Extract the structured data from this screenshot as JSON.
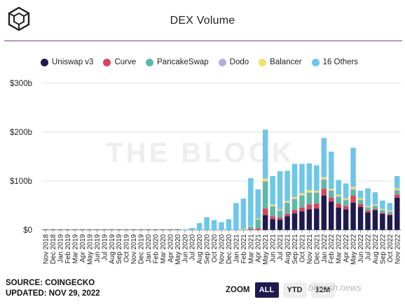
{
  "header": {
    "title": "DEX Volume"
  },
  "legend": [
    {
      "name": "Uniswap v3",
      "color": "#1f1a4e"
    },
    {
      "name": "Curve",
      "color": "#d9435e"
    },
    {
      "name": "PancakeSwap",
      "color": "#5fb8a6"
    },
    {
      "name": "Dodo",
      "color": "#b7add8"
    },
    {
      "name": "Balancer",
      "color": "#f1e06a"
    },
    {
      "name": "16 Others",
      "color": "#6ec6ea"
    }
  ],
  "footer": {
    "source": "SOURCE: COINGECKO",
    "updated": "UPDATED: NOV 29, 2022"
  },
  "zoom": {
    "label": "ZOOM",
    "buttons": [
      "ALL",
      "YTD",
      "12M"
    ],
    "active": "ALL"
  },
  "watermark": {
    "text": "THE BLOCK",
    "site": "bitpush.news"
  },
  "chart_data": {
    "type": "bar",
    "stacked": true,
    "y_unit": "billion USD",
    "ylim": [
      0,
      300
    ],
    "yticks": [
      0,
      100,
      200,
      300
    ],
    "ytick_labels": [
      "$0",
      "$100b",
      "$200b",
      "$300b"
    ],
    "grid": true,
    "legend_position": "top",
    "categories": [
      "Nov 2018",
      "Dec 2018",
      "Jan 2019",
      "Feb 2019",
      "Mar 2019",
      "Apr 2019",
      "May 2019",
      "Jun 2019",
      "Jul 2019",
      "Aug 2019",
      "Sep 2019",
      "Oct 2019",
      "Nov 2019",
      "Dec 2019",
      "Jan 2020",
      "Feb 2020",
      "Mar 2020",
      "Apr 2020",
      "May 2020",
      "Jun 2020",
      "Jul 2020",
      "Aug 2020",
      "Sep 2020",
      "Oct 2020",
      "Nov 2020",
      "Dec 2020",
      "Jan 2021",
      "Feb 2021",
      "Mar 2021",
      "Apr 2021",
      "May 2021",
      "Jun 2021",
      "Jul 2021",
      "Aug 2021",
      "Sep 2021",
      "Oct 2021",
      "Nov 2021",
      "Dec 2021",
      "Jan 2022",
      "Feb 2022",
      "Mar 2022",
      "Apr 2022",
      "May 2022",
      "Jun 2022",
      "Jul 2022",
      "Aug 2022",
      "Sep 2022",
      "Oct 2022",
      "Nov 2022"
    ],
    "series": [
      {
        "name": "Uniswap v3",
        "values": [
          0,
          0,
          0,
          0,
          0,
          0,
          0,
          0,
          0,
          0,
          0,
          0,
          0,
          0,
          0,
          0,
          0,
          0,
          0,
          0,
          0,
          0,
          0,
          0,
          0,
          0,
          0,
          0,
          0,
          0,
          30,
          22,
          21,
          28,
          34,
          38,
          42,
          44,
          70,
          58,
          46,
          42,
          56,
          47,
          36,
          40,
          33,
          30,
          66
        ]
      },
      {
        "name": "Curve",
        "values": [
          0,
          0,
          0,
          0,
          0,
          0,
          0,
          0,
          0,
          0,
          0,
          0,
          0,
          0,
          0,
          0,
          0,
          0,
          0,
          0,
          0,
          0,
          0,
          0,
          0,
          0,
          0,
          0,
          2,
          3,
          14,
          6,
          4,
          5,
          7,
          8,
          10,
          10,
          14,
          8,
          8,
          7,
          14,
          6,
          4,
          3,
          2,
          2,
          6
        ]
      },
      {
        "name": "PancakeSwap",
        "values": [
          0,
          0,
          0,
          0,
          0,
          0,
          0,
          0,
          0,
          0,
          0,
          0,
          0,
          0,
          0,
          0,
          0,
          0,
          0,
          0,
          0,
          0,
          0,
          0,
          0,
          0,
          0,
          1,
          5,
          18,
          55,
          20,
          14,
          22,
          22,
          24,
          24,
          22,
          18,
          14,
          14,
          12,
          12,
          8,
          6,
          6,
          5,
          5,
          8
        ]
      },
      {
        "name": "Dodo",
        "values": [
          0,
          0,
          0,
          0,
          0,
          0,
          0,
          0,
          0,
          0,
          0,
          0,
          0,
          0,
          0,
          0,
          0,
          0,
          0,
          0,
          0,
          0,
          0,
          0,
          0,
          0,
          0,
          0,
          0,
          0,
          1,
          1,
          1,
          1,
          1,
          1,
          1,
          1,
          2,
          1,
          1,
          1,
          2,
          1,
          1,
          1,
          1,
          1,
          2
        ]
      },
      {
        "name": "Balancer",
        "values": [
          0,
          0,
          0,
          0,
          0,
          0,
          0,
          0,
          0,
          0,
          0,
          0,
          0,
          0,
          0,
          0,
          0,
          0,
          0,
          0,
          0,
          0,
          0,
          0,
          0,
          0,
          0,
          1,
          1,
          2,
          5,
          3,
          2,
          3,
          3,
          4,
          4,
          3,
          4,
          3,
          3,
          3,
          4,
          3,
          2,
          2,
          2,
          2,
          3
        ]
      },
      {
        "name": "16 Others",
        "values": [
          0,
          0,
          0,
          0,
          0,
          0,
          0,
          0,
          0,
          0,
          0,
          0,
          0,
          0,
          0,
          0,
          0,
          0,
          0,
          1,
          4,
          14,
          26,
          20,
          16,
          22,
          55,
          62,
          98,
          60,
          100,
          58,
          78,
          62,
          68,
          60,
          55,
          52,
          80,
          76,
          30,
          30,
          80,
          15,
          36,
          25,
          17,
          15,
          25
        ]
      }
    ]
  }
}
